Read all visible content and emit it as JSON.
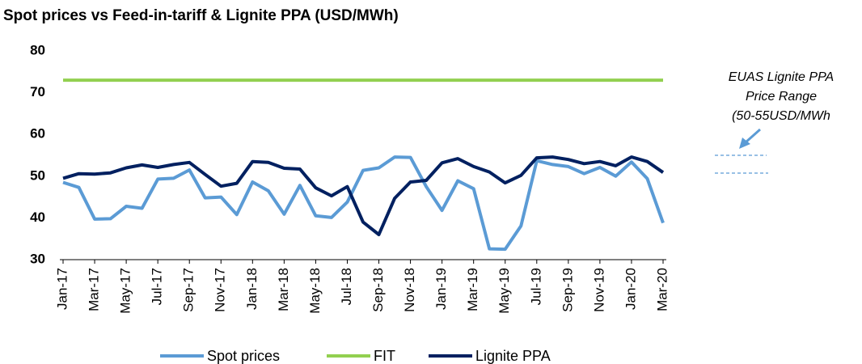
{
  "chart_data": {
    "type": "line",
    "title": "Spot prices vs Feed-in-tariff & Lignite PPA (USD/MWh)",
    "categories": [
      "Jan-17",
      null,
      "Mar-17",
      null,
      "May-17",
      null,
      "Jul-17",
      null,
      "Sep-17",
      null,
      "Nov-17",
      null,
      "Jan-18",
      null,
      "Mar-18",
      null,
      "May-18",
      null,
      "Jul-18",
      null,
      "Sep-18",
      null,
      "Nov-18",
      null,
      "Jan-19",
      null,
      "Mar-19",
      null,
      "May-19",
      null,
      "Jul-19",
      null,
      "Sep-19",
      null,
      "Nov-19",
      null,
      "Jan-20",
      null,
      "Mar-20"
    ],
    "series": [
      {
        "name": "Spot prices",
        "color": "#5b9bd5",
        "values": [
          48.5,
          47.3,
          39.7,
          39.8,
          42.8,
          42.3,
          49.3,
          49.5,
          51.5,
          44.8,
          45,
          40.8,
          48.6,
          46.5,
          40.9,
          47.8,
          40.5,
          40.1,
          43.8,
          51.4,
          52,
          54.6,
          54.5,
          47.5,
          41.8,
          48.9,
          47,
          32.6,
          32.5,
          38.1,
          53.7,
          52.8,
          52.3,
          50.6,
          52.1,
          50,
          53.4,
          49.4,
          38.8
        ]
      },
      {
        "name": "FIT",
        "color": "#92d050",
        "values": [
          73,
          73,
          73,
          73,
          73,
          73,
          73,
          73,
          73,
          73,
          73,
          73,
          73,
          73,
          73,
          73,
          73,
          73,
          73,
          73,
          73,
          73,
          73,
          73,
          73,
          73,
          73,
          73,
          73,
          73,
          73,
          73,
          73,
          73,
          73,
          73,
          73,
          73,
          73
        ]
      },
      {
        "name": "Lignite PPA",
        "color": "#002060",
        "values": [
          49.5,
          50.6,
          50.5,
          50.8,
          52,
          52.7,
          52.1,
          52.8,
          53.3,
          50.4,
          47.6,
          48.3,
          53.5,
          53.3,
          51.9,
          51.7,
          47.2,
          45.3,
          47.5,
          39,
          36,
          44.7,
          48.6,
          49,
          53.2,
          54.2,
          52.3,
          51,
          48.4,
          50.2,
          54.4,
          54.6,
          54,
          53,
          53.5,
          52.5,
          54.6,
          53.5,
          50.9
        ]
      }
    ],
    "ylim": [
      30,
      80
    ],
    "yticks": [
      30,
      40,
      50,
      60,
      70,
      80
    ],
    "grid": false,
    "legend": "bottom",
    "annotation": [
      "EUAS Lignite PPA",
      "Price Range",
      "(50-55USD/MWh"
    ]
  }
}
